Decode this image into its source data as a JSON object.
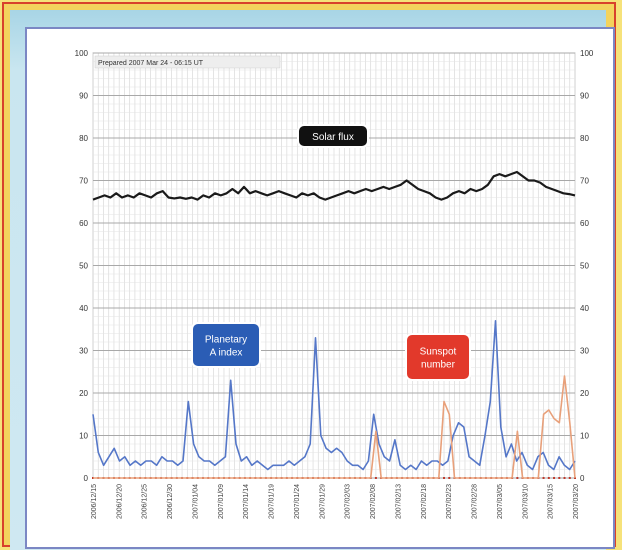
{
  "chart_data": {
    "type": "line",
    "title": "Prepared 2007 Mar 24 - 06:15 UT",
    "ylim": [
      0,
      100
    ],
    "yticks": [
      0,
      10,
      20,
      30,
      40,
      50,
      60,
      70,
      80,
      90,
      100
    ],
    "grid": true,
    "x_tick_labels": [
      "2006/12/15",
      "2006/12/20",
      "2006/12/25",
      "2006/12/30",
      "2007/01/04",
      "2007/01/09",
      "2007/01/14",
      "2007/01/19",
      "2007/01/24",
      "2007/01/29",
      "2007/02/03",
      "2007/02/08",
      "2007/02/13",
      "2007/02/18",
      "2007/02/23",
      "2007/02/28",
      "2007/03/05",
      "2007/03/10",
      "2007/03/15",
      "2007/03/20"
    ],
    "annotations": [
      {
        "text": "Solar flux",
        "series": "solar_flux",
        "bg": "#111111",
        "fg": "#ffffff"
      },
      {
        "text": "Planetary\nA index",
        "series": "a_index",
        "bg": "#2b5db5",
        "fg": "#ffffff"
      },
      {
        "text": "Sunspot\nnumber",
        "series": "sunspot",
        "bg": "#e2392b",
        "fg": "#ffffff"
      }
    ],
    "series": [
      {
        "key": "solar_flux",
        "color": "#1a1a1a",
        "values": [
          65.5,
          66,
          66.5,
          66,
          67,
          66,
          66.5,
          66,
          67,
          66.5,
          66,
          67,
          67.5,
          66,
          65.8,
          66,
          65.7,
          66,
          65.5,
          66.5,
          66,
          67,
          66.5,
          67,
          68,
          67,
          68.5,
          67,
          67.5,
          67,
          66.5,
          67,
          67.5,
          67,
          66.5,
          66,
          67,
          66.5,
          67,
          66,
          65.5,
          66,
          66.5,
          67,
          67.5,
          67,
          67.5,
          68,
          67.5,
          68,
          68.5,
          68,
          68.5,
          69,
          70,
          69,
          68,
          67.5,
          67,
          66,
          65.5,
          66,
          67,
          67.5,
          67,
          68,
          67.5,
          68,
          69,
          71,
          71.5,
          71,
          71.5,
          72,
          71,
          70,
          70,
          69.5,
          68.5,
          68,
          67.5,
          67,
          66.8,
          66.5
        ]
      },
      {
        "key": "a_index",
        "color": "#5577c8",
        "values": [
          15,
          6,
          3,
          5,
          7,
          4,
          5,
          3,
          4,
          3,
          4,
          4,
          3,
          5,
          4,
          4,
          3,
          4,
          18,
          8,
          5,
          4,
          4,
          3,
          4,
          5,
          23,
          8,
          4,
          5,
          3,
          4,
          3,
          2,
          3,
          3,
          3,
          4,
          3,
          4,
          5,
          8,
          33,
          10,
          7,
          6,
          7,
          6,
          4,
          3,
          3,
          2,
          4,
          15,
          8,
          5,
          4,
          9,
          3,
          2,
          3,
          2,
          4,
          3,
          4,
          4,
          3,
          4,
          10,
          13,
          12,
          5,
          4,
          3,
          10,
          18,
          37,
          12,
          5,
          8,
          4,
          6,
          3,
          2,
          5,
          6,
          3,
          2,
          5,
          3,
          2,
          4
        ]
      },
      {
        "key": "sunspot",
        "color": "#e8a07a",
        "values": [
          0,
          0,
          0,
          0,
          0,
          0,
          0,
          0,
          0,
          0,
          0,
          0,
          0,
          0,
          0,
          0,
          0,
          0,
          0,
          0,
          0,
          0,
          0,
          0,
          0,
          0,
          0,
          0,
          0,
          0,
          0,
          0,
          0,
          0,
          0,
          0,
          0,
          0,
          0,
          0,
          0,
          0,
          0,
          0,
          0,
          0,
          0,
          0,
          0,
          0,
          0,
          0,
          0,
          0,
          11,
          0,
          0,
          0,
          0,
          0,
          0,
          0,
          0,
          0,
          0,
          0,
          0,
          18,
          15,
          0,
          0,
          0,
          0,
          0,
          0,
          0,
          0,
          0,
          0,
          0,
          0,
          11,
          0,
          0,
          0,
          0,
          15,
          16,
          14,
          13,
          24,
          13,
          0
        ]
      }
    ]
  }
}
